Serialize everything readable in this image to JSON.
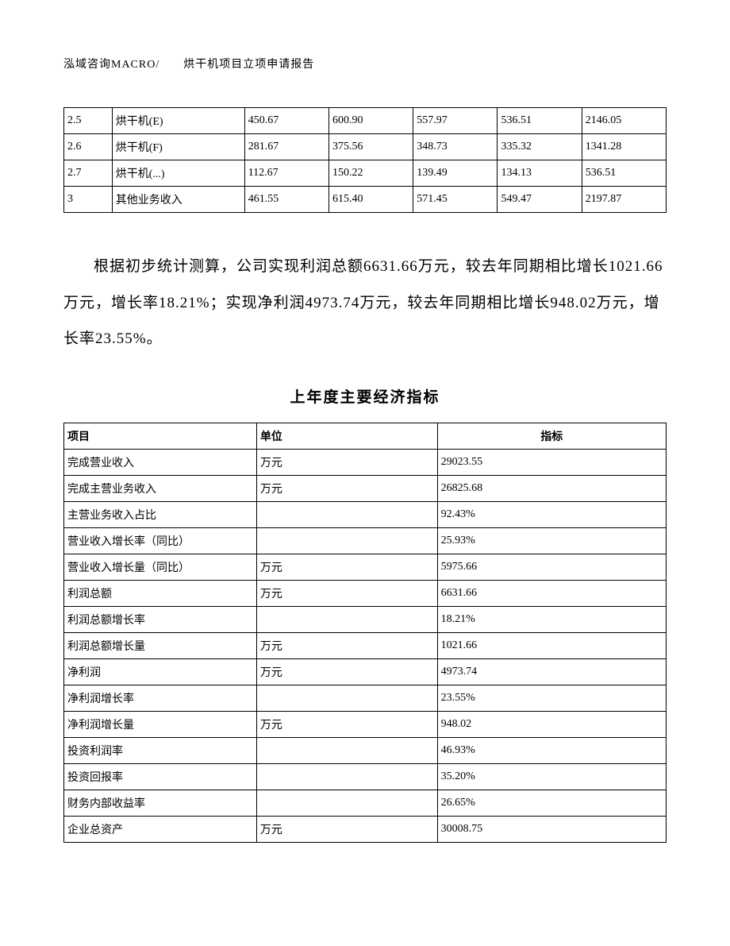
{
  "header": "泓域咨询MACRO/　　烘干机项目立项申请报告",
  "table1": {
    "type": "table",
    "columns": 7,
    "col_widths": [
      "8%",
      "22%",
      "14%",
      "14%",
      "14%",
      "14%",
      "14%"
    ],
    "border_color": "#000000",
    "font_size": 14,
    "rows": [
      [
        "2.5",
        "烘干机(E)",
        "450.67",
        "600.90",
        "557.97",
        "536.51",
        "2146.05"
      ],
      [
        "2.6",
        "烘干机(F)",
        "281.67",
        "375.56",
        "348.73",
        "335.32",
        "1341.28"
      ],
      [
        "2.7",
        "烘干机(...)",
        "112.67",
        "150.22",
        "139.49",
        "134.13",
        "536.51"
      ],
      [
        "3",
        "其他业务收入",
        "461.55",
        "615.40",
        "571.45",
        "549.47",
        "2197.87"
      ]
    ]
  },
  "paragraph": "根据初步统计测算，公司实现利润总额6631.66万元，较去年同期相比增长1021.66万元，增长率18.21%；实现净利润4973.74万元，较去年同期相比增长948.02万元，增长率23.55%。",
  "table2": {
    "type": "table",
    "title": "上年度主要经济指标",
    "border_color": "#000000",
    "font_size": 14,
    "title_fontsize": 19,
    "col_widths": [
      "32%",
      "30%",
      "38%"
    ],
    "headers": [
      "项目",
      "单位",
      "指标"
    ],
    "rows": [
      [
        "完成营业收入",
        "万元",
        "29023.55"
      ],
      [
        "完成主营业务收入",
        "万元",
        "26825.68"
      ],
      [
        "主营业务收入占比",
        "",
        "92.43%"
      ],
      [
        "营业收入增长率（同比）",
        "",
        "25.93%"
      ],
      [
        "营业收入增长量（同比）",
        "万元",
        "5975.66"
      ],
      [
        "利润总额",
        "万元",
        "6631.66"
      ],
      [
        "利润总额增长率",
        "",
        "18.21%"
      ],
      [
        "利润总额增长量",
        "万元",
        "1021.66"
      ],
      [
        "净利润",
        "万元",
        "4973.74"
      ],
      [
        "净利润增长率",
        "",
        "23.55%"
      ],
      [
        "净利润增长量",
        "万元",
        "948.02"
      ],
      [
        "投资利润率",
        "",
        "46.93%"
      ],
      [
        "投资回报率",
        "",
        "35.20%"
      ],
      [
        "财务内部收益率",
        "",
        "26.65%"
      ],
      [
        "企业总资产",
        "万元",
        "30008.75"
      ]
    ]
  },
  "background_color": "#ffffff",
  "text_color": "#000000"
}
